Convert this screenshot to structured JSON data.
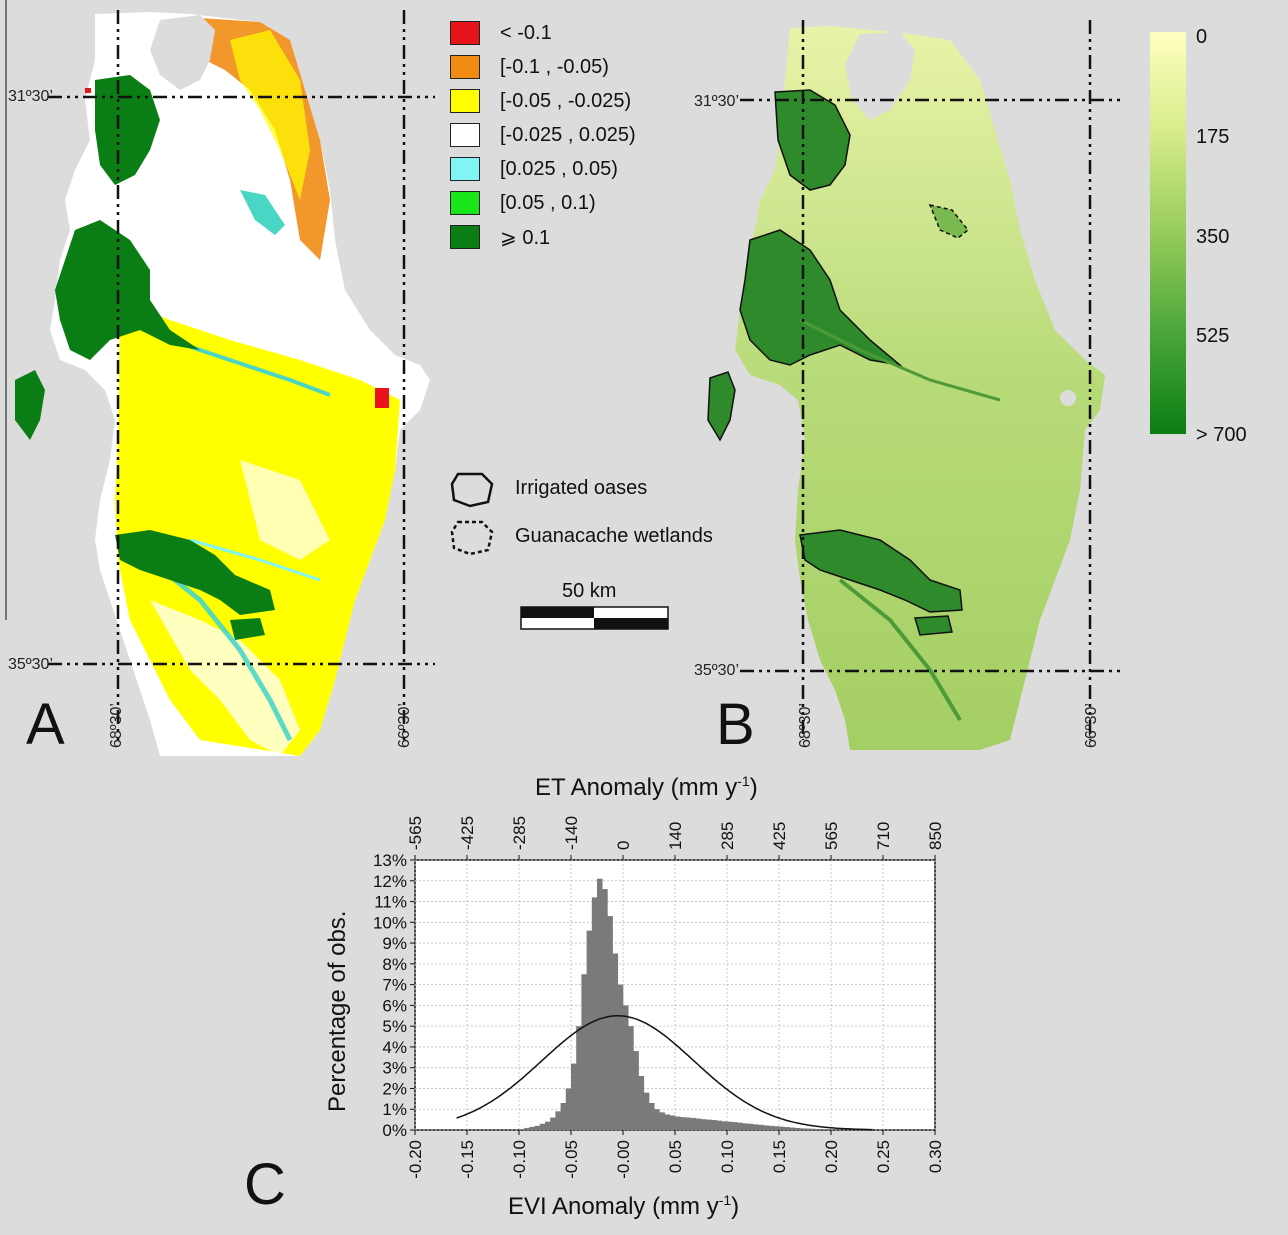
{
  "panels": {
    "a": "A",
    "b": "B",
    "c": "C"
  },
  "coords": {
    "lat_north": "31º30’",
    "lat_south": "35º30’",
    "lon_west": "68º30’",
    "lon_east": "66º30’"
  },
  "legend_a": [
    {
      "label": "< -0.1",
      "color": "#e8141b"
    },
    {
      "label": "[-0.1 , -0.05)",
      "color": "#f08c14"
    },
    {
      "label": "[-0.05 , -0.025)",
      "color": "#ffff00"
    },
    {
      "label": "[-0.025 , 0.025)",
      "color": "#ffffff"
    },
    {
      "label": "[0.025 , 0.05)",
      "color": "#7ff5f5"
    },
    {
      "label": "[0.05 , 0.1)",
      "color": "#19e619"
    },
    {
      "label": "⩾ 0.1",
      "color": "#0a7d14"
    }
  ],
  "colorbar_b": {
    "labels": [
      "0",
      "175",
      "350",
      "525",
      "> 700"
    ],
    "colors": [
      "#ffffc0",
      "#d6ec8a",
      "#96cc5a",
      "#4aa63a",
      "#0a7d14"
    ]
  },
  "map_legend": {
    "irrigated": "Irrigated oases",
    "wetlands": "Guanacache wetlands",
    "scale": "50 km"
  },
  "chart_data": {
    "type": "bar",
    "title": "",
    "xlabel": "EVI Anomaly (mm y",
    "xlabel_sup": "-1",
    "xlabel_close": ")",
    "x2label": "ET Anomaly (mm y",
    "x2label_sup": "-1",
    "x2label_close": ")",
    "ylabel": "Percentage of obs.",
    "xlim": [
      -0.2,
      0.3
    ],
    "ylim": [
      0,
      13
    ],
    "xticks": [
      "-0.20",
      "-0.15",
      "-0.10",
      "-0.05",
      "-0.00",
      "0.05",
      "0.10",
      "0.15",
      "0.20",
      "0.25",
      "0.30"
    ],
    "x2ticks": [
      "-565",
      "-425",
      "-285",
      "-140",
      "0",
      "140",
      "285",
      "425",
      "565",
      "710",
      "850"
    ],
    "yticks": [
      "0%",
      "1%",
      "2%",
      "3%",
      "4%",
      "5%",
      "6%",
      "7%",
      "8%",
      "9%",
      "10%",
      "11%",
      "12%",
      "13%"
    ],
    "bin_width": 0.005,
    "bins_start": -0.1,
    "values": [
      0.05,
      0.1,
      0.15,
      0.2,
      0.3,
      0.4,
      0.6,
      0.9,
      1.3,
      2.0,
      3.2,
      5.0,
      7.5,
      9.6,
      11.2,
      12.1,
      11.6,
      10.3,
      8.5,
      7.0,
      6.0,
      5.0,
      3.8,
      2.6,
      1.8,
      1.3,
      1.0,
      0.85,
      0.75,
      0.7,
      0.65,
      0.62,
      0.6,
      0.58,
      0.55,
      0.52,
      0.5,
      0.48,
      0.45,
      0.42,
      0.4,
      0.38,
      0.35,
      0.32,
      0.3,
      0.27,
      0.25,
      0.22,
      0.2,
      0.18,
      0.16,
      0.14,
      0.12,
      0.1,
      0.08,
      0.07,
      0.06,
      0.05,
      0.04,
      0.03,
      0.02,
      0.015,
      0.01,
      0.008,
      0.005,
      0.003
    ],
    "normal_curve": {
      "mean": -0.005,
      "sd": 0.073,
      "peak": 5.5
    }
  }
}
